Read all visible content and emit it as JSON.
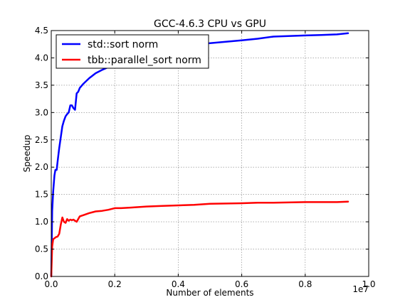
{
  "chart_data": {
    "type": "line",
    "title": "GCC-4.6.3 CPU vs GPU",
    "xlabel": "Number of elements",
    "ylabel": "Speedup",
    "x_offset_label": "1e7",
    "xlim": [
      0,
      10000000
    ],
    "ylim": [
      0,
      4.5
    ],
    "xticks": [
      0,
      2000000,
      4000000,
      6000000,
      8000000,
      10000000
    ],
    "xtick_labels": [
      "0.0",
      "0.2",
      "0.4",
      "0.6",
      "0.8",
      "1.0"
    ],
    "yticks": [
      0,
      0.5,
      1.0,
      1.5,
      2.0,
      2.5,
      3.0,
      3.5,
      4.0,
      4.5
    ],
    "ytick_labels": [
      "0.0",
      "0.5",
      "1.0",
      "1.5",
      "2.0",
      "2.5",
      "3.0",
      "3.5",
      "4.0",
      "4.5"
    ],
    "grid": true,
    "legend_position": "top-left",
    "series": [
      {
        "name": "std::sort norm",
        "color": "#0000ff",
        "x": [
          0,
          30000,
          60000,
          100000,
          130000,
          170000,
          200000,
          250000,
          300000,
          350000,
          400000,
          450000,
          500000,
          550000,
          600000,
          650000,
          700000,
          750000,
          800000,
          850000,
          900000,
          1000000,
          1200000,
          1400000,
          1600000,
          1800000,
          2000000,
          2200000,
          2500000,
          3000000,
          3500000,
          4000000,
          4500000,
          5000000,
          6000000,
          6500000,
          7000000,
          8000000,
          8500000,
          9000000,
          9350000
        ],
        "y": [
          0,
          1.2,
          1.55,
          1.85,
          1.95,
          1.95,
          2.1,
          2.35,
          2.55,
          2.75,
          2.85,
          2.93,
          2.97,
          3.0,
          3.13,
          3.13,
          3.08,
          3.05,
          3.35,
          3.38,
          3.45,
          3.52,
          3.63,
          3.72,
          3.78,
          3.83,
          3.87,
          3.9,
          3.95,
          4.03,
          4.1,
          4.17,
          4.22,
          4.27,
          4.32,
          4.35,
          4.39,
          4.41,
          4.42,
          4.43,
          4.45
        ]
      },
      {
        "name": "tbb::parallel_sort norm",
        "color": "#ff0000",
        "x": [
          0,
          30000,
          60000,
          100000,
          150000,
          200000,
          250000,
          300000,
          350000,
          400000,
          450000,
          500000,
          550000,
          600000,
          650000,
          700000,
          750000,
          800000,
          850000,
          900000,
          1000000,
          1200000,
          1400000,
          1600000,
          1800000,
          2000000,
          2200000,
          2500000,
          3000000,
          3500000,
          4000000,
          4500000,
          5000000,
          6000000,
          6500000,
          7000000,
          8000000,
          9000000,
          9350000
        ],
        "y": [
          0,
          0.55,
          0.68,
          0.7,
          0.72,
          0.73,
          0.78,
          0.95,
          1.08,
          1.0,
          0.98,
          1.05,
          1.02,
          1.04,
          1.03,
          1.04,
          1.02,
          1.0,
          1.05,
          1.1,
          1.12,
          1.16,
          1.19,
          1.2,
          1.22,
          1.25,
          1.25,
          1.26,
          1.28,
          1.29,
          1.3,
          1.31,
          1.33,
          1.34,
          1.35,
          1.35,
          1.36,
          1.36,
          1.37
        ]
      }
    ]
  }
}
